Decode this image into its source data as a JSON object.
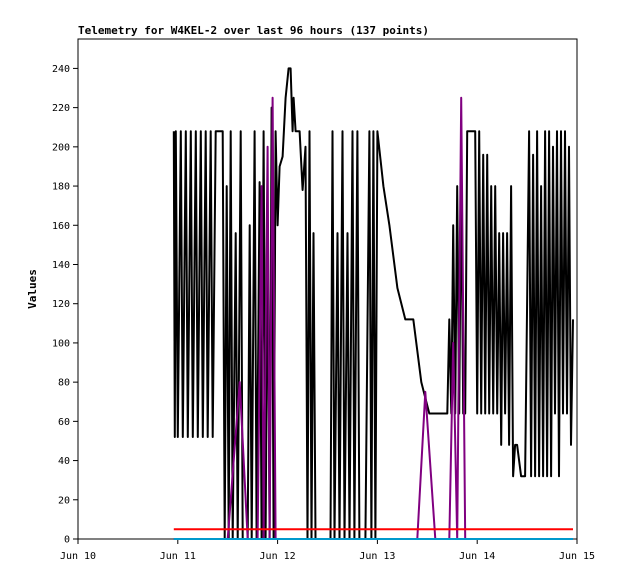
{
  "chart_data": {
    "type": "line",
    "title": "Telemetry for W4KEL-2 over last 96 hours (137 points)",
    "xlabel": "",
    "ylabel": "Values",
    "ylim": [
      0,
      255
    ],
    "xlim": [
      0,
      5
    ],
    "yticks": [
      0,
      20,
      40,
      60,
      80,
      100,
      120,
      140,
      160,
      180,
      200,
      220,
      240
    ],
    "xticks": [
      {
        "x": 0,
        "label": "Jun 10"
      },
      {
        "x": 1,
        "label": "Jun 11"
      },
      {
        "x": 2,
        "label": "Jun 12"
      },
      {
        "x": 3,
        "label": "Jun 13"
      },
      {
        "x": 4,
        "label": "Jun 14"
      },
      {
        "x": 5,
        "label": "Jun 15"
      }
    ],
    "grid": false,
    "series": [
      {
        "color": "#000000",
        "points": [
          [
            0.96,
            208
          ],
          [
            0.97,
            52
          ],
          [
            0.98,
            208
          ],
          [
            1.0,
            52
          ],
          [
            1.03,
            208
          ],
          [
            1.05,
            52
          ],
          [
            1.08,
            208
          ],
          [
            1.1,
            52
          ],
          [
            1.13,
            208
          ],
          [
            1.15,
            52
          ],
          [
            1.18,
            208
          ],
          [
            1.2,
            52
          ],
          [
            1.23,
            208
          ],
          [
            1.25,
            52
          ],
          [
            1.28,
            208
          ],
          [
            1.3,
            52
          ],
          [
            1.33,
            208
          ],
          [
            1.35,
            52
          ],
          [
            1.38,
            208
          ],
          [
            1.45,
            208
          ],
          [
            1.47,
            0
          ],
          [
            1.49,
            180
          ],
          [
            1.51,
            0
          ],
          [
            1.53,
            208
          ],
          [
            1.55,
            0
          ],
          [
            1.58,
            156
          ],
          [
            1.6,
            0
          ],
          [
            1.63,
            208
          ],
          [
            1.65,
            0
          ],
          [
            1.7,
            0
          ],
          [
            1.72,
            160
          ],
          [
            1.74,
            0
          ],
          [
            1.77,
            208
          ],
          [
            1.79,
            0
          ],
          [
            1.82,
            182
          ],
          [
            1.84,
            0
          ],
          [
            1.86,
            208
          ],
          [
            1.88,
            0
          ],
          [
            1.9,
            160
          ],
          [
            1.92,
            0
          ],
          [
            1.94,
            220
          ],
          [
            1.96,
            0
          ],
          [
            1.98,
            208
          ],
          [
            2.0,
            160
          ],
          [
            2.02,
            190
          ],
          [
            2.05,
            195
          ],
          [
            2.08,
            225
          ],
          [
            2.11,
            240
          ],
          [
            2.13,
            240
          ],
          [
            2.15,
            208
          ],
          [
            2.16,
            225
          ],
          [
            2.18,
            208
          ],
          [
            2.22,
            208
          ],
          [
            2.25,
            178
          ],
          [
            2.28,
            200
          ],
          [
            2.3,
            0
          ],
          [
            2.32,
            208
          ],
          [
            2.34,
            0
          ],
          [
            2.36,
            156
          ],
          [
            2.38,
            0
          ],
          [
            2.42,
            0
          ],
          [
            2.48,
            0
          ],
          [
            2.53,
            0
          ],
          [
            2.55,
            208
          ],
          [
            2.57,
            0
          ],
          [
            2.6,
            156
          ],
          [
            2.62,
            0
          ],
          [
            2.65,
            208
          ],
          [
            2.67,
            0
          ],
          [
            2.7,
            156
          ],
          [
            2.72,
            0
          ],
          [
            2.75,
            208
          ],
          [
            2.77,
            0
          ],
          [
            2.8,
            208
          ],
          [
            2.82,
            0
          ],
          [
            2.88,
            0
          ],
          [
            2.92,
            208
          ],
          [
            2.94,
            0
          ],
          [
            2.96,
            208
          ],
          [
            2.98,
            0
          ],
          [
            3.0,
            208
          ],
          [
            3.06,
            180
          ],
          [
            3.12,
            160
          ],
          [
            3.2,
            128
          ],
          [
            3.28,
            112
          ],
          [
            3.36,
            112
          ],
          [
            3.44,
            80
          ],
          [
            3.52,
            64
          ],
          [
            3.6,
            64
          ],
          [
            3.7,
            64
          ],
          [
            3.72,
            112
          ],
          [
            3.74,
            64
          ],
          [
            3.76,
            160
          ],
          [
            3.78,
            64
          ],
          [
            3.8,
            180
          ],
          [
            3.82,
            64
          ],
          [
            3.84,
            190
          ],
          [
            3.86,
            64
          ],
          [
            3.88,
            64
          ],
          [
            3.9,
            208
          ],
          [
            3.98,
            208
          ],
          [
            4.0,
            64
          ],
          [
            4.02,
            208
          ],
          [
            4.04,
            64
          ],
          [
            4.06,
            196
          ],
          [
            4.08,
            64
          ],
          [
            4.1,
            196
          ],
          [
            4.12,
            64
          ],
          [
            4.14,
            180
          ],
          [
            4.16,
            64
          ],
          [
            4.18,
            180
          ],
          [
            4.2,
            64
          ],
          [
            4.22,
            156
          ],
          [
            4.24,
            48
          ],
          [
            4.26,
            156
          ],
          [
            4.28,
            64
          ],
          [
            4.3,
            156
          ],
          [
            4.32,
            48
          ],
          [
            4.34,
            180
          ],
          [
            4.36,
            32
          ],
          [
            4.38,
            48
          ],
          [
            4.4,
            48
          ],
          [
            4.44,
            32
          ],
          [
            4.48,
            32
          ],
          [
            4.52,
            208
          ],
          [
            4.54,
            32
          ],
          [
            4.56,
            196
          ],
          [
            4.58,
            32
          ],
          [
            4.6,
            208
          ],
          [
            4.62,
            32
          ],
          [
            4.64,
            180
          ],
          [
            4.66,
            32
          ],
          [
            4.68,
            208
          ],
          [
            4.7,
            32
          ],
          [
            4.72,
            208
          ],
          [
            4.74,
            32
          ],
          [
            4.76,
            200
          ],
          [
            4.78,
            64
          ],
          [
            4.8,
            208
          ],
          [
            4.82,
            32
          ],
          [
            4.84,
            208
          ],
          [
            4.86,
            64
          ],
          [
            4.88,
            208
          ],
          [
            4.9,
            64
          ],
          [
            4.92,
            200
          ],
          [
            4.94,
            48
          ],
          [
            4.96,
            112
          ]
        ]
      },
      {
        "color": "#800080",
        "points": [
          [
            0.96,
            0
          ],
          [
            1.5,
            0
          ],
          [
            1.62,
            80
          ],
          [
            1.7,
            0
          ],
          [
            1.8,
            0
          ],
          [
            1.84,
            180
          ],
          [
            1.86,
            0
          ],
          [
            1.9,
            200
          ],
          [
            1.92,
            0
          ],
          [
            1.95,
            225
          ],
          [
            1.98,
            0
          ],
          [
            3.4,
            0
          ],
          [
            3.48,
            75
          ],
          [
            3.58,
            0
          ],
          [
            3.72,
            0
          ],
          [
            3.76,
            100
          ],
          [
            3.8,
            0
          ],
          [
            3.84,
            225
          ],
          [
            3.88,
            0
          ],
          [
            4.96,
            0
          ]
        ]
      },
      {
        "color": "#0099cc",
        "points": [
          [
            0.96,
            0
          ],
          [
            4.96,
            0
          ]
        ]
      },
      {
        "color": "#ff0000",
        "points": [
          [
            0.96,
            5
          ],
          [
            4.96,
            5
          ]
        ]
      }
    ]
  }
}
